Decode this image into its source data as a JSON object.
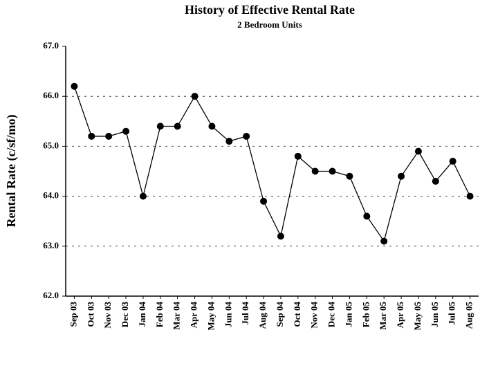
{
  "chart_data": {
    "type": "line",
    "title": "History of Effective Rental Rate",
    "subtitle": "2 Bedroom Units",
    "y_label": "Rental Rate (c/sf/mo)",
    "categories": [
      "Sep 03",
      "Oct 03",
      "Nov 03",
      "Dec 03",
      "Jan 04",
      "Feb 04",
      "Mar 04",
      "Apr 04",
      "May 04",
      "Jun 04",
      "Jul 04",
      "Aug 04",
      "Sep 04",
      "Oct 04",
      "Nov 04",
      "Dec 04",
      "Jan 05",
      "Feb 05",
      "Mar 05",
      "Apr 05",
      "May 05",
      "Jun 05",
      "Jul 05",
      "Aug 05"
    ],
    "values": [
      66.2,
      65.2,
      65.2,
      65.3,
      64.0,
      65.4,
      65.4,
      66.0,
      65.4,
      65.1,
      65.2,
      63.9,
      63.2,
      64.8,
      64.5,
      64.5,
      64.4,
      63.6,
      63.1,
      64.4,
      64.9,
      64.3,
      64.7,
      64.0
    ],
    "color": "#000000",
    "ylim": [
      62,
      67
    ],
    "yticks": [
      {
        "value": 62,
        "label": "62.0"
      },
      {
        "value": 63,
        "label": "63.0"
      },
      {
        "value": 64,
        "label": "64.0"
      },
      {
        "value": 65,
        "label": "65.0"
      },
      {
        "value": 66,
        "label": "66.0"
      },
      {
        "value": 67,
        "label": "67.0"
      }
    ],
    "grid": true
  }
}
